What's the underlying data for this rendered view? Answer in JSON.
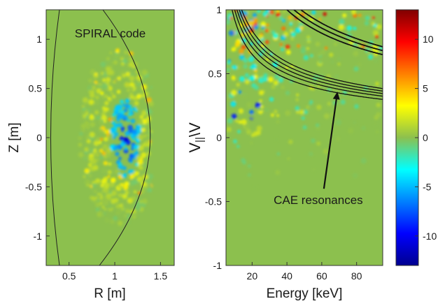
{
  "chart_data": [
    {
      "type": "heatmap",
      "xlabel": "R [m]",
      "ylabel": "Z [m]",
      "xlim": [
        0.25,
        1.65
      ],
      "ylim": [
        -1.3,
        1.3
      ],
      "xticks": [
        {
          "v": 0.5,
          "label": "0.5"
        },
        {
          "v": 1,
          "label": "1"
        },
        {
          "v": 1.5,
          "label": "1.5"
        }
      ],
      "yticks": [
        {
          "v": 1,
          "label": "1"
        },
        {
          "v": 0.5,
          "label": "0.5"
        },
        {
          "v": 0,
          "label": "0"
        },
        {
          "v": -0.5,
          "label": "-0.5"
        },
        {
          "v": -1,
          "label": "-1"
        }
      ],
      "annotations": [
        {
          "text": "SPIRAL code",
          "x": 0.95,
          "y": 1.02,
          "color": "#2b2d8f"
        }
      ]
    },
    {
      "type": "heatmap",
      "xlabel": "Energy [keV]",
      "ylabel_main": "V",
      "ylabel_sub": "||",
      "ylabel_end": "\\V",
      "xlim": [
        5,
        95
      ],
      "ylim": [
        -1,
        1
      ],
      "xticks": [
        {
          "v": 20,
          "label": "20"
        },
        {
          "v": 40,
          "label": "40"
        },
        {
          "v": 60,
          "label": "60"
        },
        {
          "v": 80,
          "label": "80"
        }
      ],
      "yticks": [
        {
          "v": 1,
          "label": "1"
        },
        {
          "v": 0.5,
          "label": "0.5"
        },
        {
          "v": 0,
          "label": "0"
        },
        {
          "v": -0.5,
          "label": "-0.5"
        },
        {
          "v": -1,
          "label": "-1"
        }
      ],
      "annotations": [
        {
          "text": "CAE resonances",
          "x": 58,
          "y": -0.52,
          "arrow_to": [
            69,
            0.36
          ]
        }
      ]
    },
    {
      "type": "colorbar",
      "range": [
        -13,
        13
      ],
      "ticks": [
        {
          "v": 10,
          "label": "10"
        },
        {
          "v": 5,
          "label": "5"
        },
        {
          "v": 0,
          "label": "0"
        },
        {
          "v": -5,
          "label": "-5"
        },
        {
          "v": -10,
          "label": "-10"
        }
      ]
    }
  ],
  "colors": {
    "background": "#8cc04e",
    "jet": [
      "#00008f",
      "#0000ff",
      "#00ffff",
      "#ffff00",
      "#ff0000",
      "#800000"
    ]
  }
}
